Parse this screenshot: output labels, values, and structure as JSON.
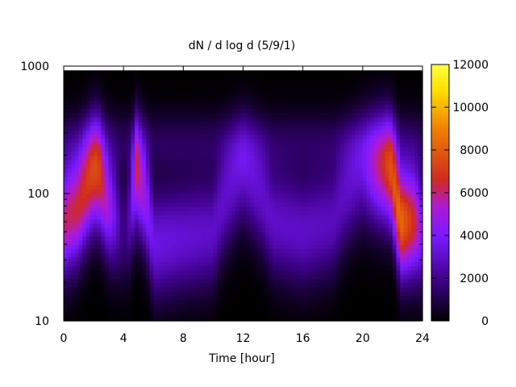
{
  "chart_data": {
    "type": "heatmap",
    "title": "dN / d log d (5/9/1)",
    "xlabel": "Time [hour]",
    "ylabel": "",
    "xlim": [
      0,
      24
    ],
    "ylim": [
      10,
      1000
    ],
    "y_scale": "log",
    "x_ticks": [
      "0",
      "4",
      "8",
      "12",
      "16",
      "20",
      "24"
    ],
    "x_tick_values": [
      0,
      4,
      8,
      12,
      16,
      20,
      24
    ],
    "y_ticks": [
      "10",
      "100",
      "1000"
    ],
    "y_tick_values": [
      10,
      100,
      1000
    ],
    "colorbar": {
      "range": [
        0,
        12000
      ],
      "ticks": [
        "0",
        "2000",
        "4000",
        "6000",
        "8000",
        "10000",
        "12000"
      ],
      "tick_values": [
        0,
        2000,
        4000,
        6000,
        8000,
        10000,
        12000
      ],
      "palette": [
        "#000000",
        "#3a0080",
        "#7a1aff",
        "#b01ad0",
        "#d02a20",
        "#f08000",
        "#ffe000",
        "#ffff40"
      ]
    },
    "grid": false,
    "notes_visible_features": {
      "time_hours": [
        0,
        1,
        2,
        2.3,
        3,
        4,
        4.5,
        4.8,
        6,
        8,
        10,
        12,
        14,
        16,
        18,
        20,
        21.8,
        22.5,
        23,
        23.5,
        24
      ],
      "peak_diameter_nm": [
        60,
        80,
        140,
        140,
        80,
        50,
        70,
        150,
        40,
        45,
        50,
        150,
        60,
        50,
        60,
        150,
        150,
        60,
        60,
        60,
        50
      ],
      "peak_value": [
        6000,
        6500,
        7000,
        7000,
        5000,
        1500,
        3000,
        6000,
        3500,
        3200,
        3000,
        3000,
        3000,
        3000,
        2800,
        3000,
        7000,
        8500,
        7500,
        6500,
        4000
      ]
    }
  }
}
